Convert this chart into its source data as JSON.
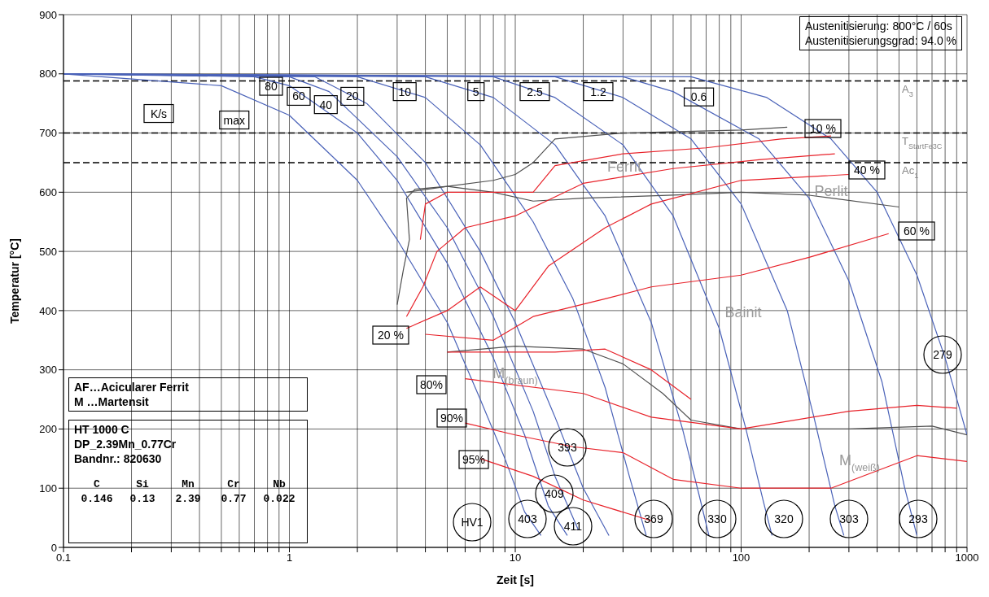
{
  "chart_data": {
    "type": "line",
    "xlabel": "Zeit [s]",
    "ylabel": "Temperatur [°C]",
    "log": "x",
    "grid": true,
    "xlim": [
      0.1,
      1000
    ],
    "ylim": [
      0,
      900
    ],
    "xticks": [
      0.1,
      {
        "value": 0.2,
        "label": null
      },
      {
        "value": 0.3,
        "label": null
      },
      {
        "value": 0.4,
        "label": null
      },
      {
        "value": 0.5,
        "label": null
      },
      {
        "value": 0.6,
        "label": null
      },
      {
        "value": 0.7,
        "label": null
      },
      {
        "value": 0.8,
        "label": null
      },
      {
        "value": 0.9,
        "label": null
      },
      1,
      {
        "value": 2,
        "label": null
      },
      {
        "value": 3,
        "label": null
      },
      {
        "value": 4,
        "label": null
      },
      {
        "value": 5,
        "label": null
      },
      {
        "value": 6,
        "label": null
      },
      {
        "value": 7,
        "label": null
      },
      {
        "value": 8,
        "label": null
      },
      {
        "value": 9,
        "label": null
      },
      10,
      {
        "value": 20,
        "label": null
      },
      {
        "value": 30,
        "label": null
      },
      {
        "value": 40,
        "label": null
      },
      {
        "value": 50,
        "label": null
      },
      {
        "value": 60,
        "label": null
      },
      {
        "value": 70,
        "label": null
      },
      {
        "value": 80,
        "label": null
      },
      {
        "value": 90,
        "label": null
      },
      100,
      {
        "value": 200,
        "label": null
      },
      {
        "value": 300,
        "label": null
      },
      {
        "value": 400,
        "label": null
      },
      {
        "value": 500,
        "label": null
      },
      {
        "value": 600,
        "label": null
      },
      {
        "value": 700,
        "label": null
      },
      {
        "value": 800,
        "label": null
      },
      {
        "value": 900,
        "label": null
      },
      1000
    ],
    "yticks": [
      0,
      100,
      200,
      300,
      400,
      500,
      600,
      700,
      800,
      900
    ],
    "series": [
      {
        "color": "#4a62b8",
        "x": [
          0.1,
          0.5,
          1,
          2,
          3,
          5,
          7,
          9,
          11,
          13
        ],
        "values": [
          800,
          780,
          730,
          620,
          520,
          380,
          250,
          150,
          60,
          20
        ]
      },
      {
        "color": "#4a62b8",
        "x": [
          0.1,
          0.7,
          1,
          2,
          3,
          5,
          8,
          11,
          14,
          17
        ],
        "values": [
          800,
          795,
          780,
          700,
          620,
          480,
          320,
          190,
          70,
          20
        ]
      },
      {
        "color": "#4a62b8",
        "x": [
          0.1,
          1,
          1.5,
          3,
          5,
          8,
          12,
          15,
          19
        ],
        "values": [
          800,
          795,
          770,
          660,
          540,
          390,
          230,
          120,
          30
        ]
      },
      {
        "color": "#4a62b8",
        "x": [
          0.1,
          1.3,
          2.2,
          4,
          7,
          10,
          15,
          20,
          26
        ],
        "values": [
          800,
          795,
          750,
          650,
          500,
          380,
          220,
          100,
          20
        ]
      },
      {
        "color": "#4a62b8",
        "x": [
          0.1,
          2,
          4,
          7,
          12,
          18,
          25,
          32,
          38
        ],
        "values": [
          800,
          795,
          760,
          680,
          550,
          420,
          270,
          120,
          20
        ]
      },
      {
        "color": "#4a62b8",
        "x": [
          0.1,
          4,
          8,
          15,
          25,
          40,
          55,
          65,
          72
        ],
        "values": [
          800,
          795,
          760,
          680,
          560,
          380,
          200,
          90,
          20
        ]
      },
      {
        "color": "#4a62b8",
        "x": [
          0.1,
          8,
          15,
          30,
          50,
          80,
          105,
          125,
          137
        ],
        "values": [
          800,
          795,
          760,
          680,
          560,
          370,
          200,
          80,
          20
        ]
      },
      {
        "color": "#4a62b8",
        "x": [
          0.1,
          15,
          30,
          60,
          100,
          160,
          210,
          260,
          285
        ],
        "values": [
          800,
          795,
          760,
          690,
          580,
          400,
          220,
          70,
          20
        ]
      },
      {
        "color": "#4a62b8",
        "x": [
          0.1,
          30,
          50,
          120,
          200,
          300,
          420,
          530,
          600
        ],
        "values": [
          800,
          795,
          770,
          690,
          590,
          450,
          280,
          100,
          20
        ]
      },
      {
        "color": "#4a62b8",
        "x": [
          0.1,
          60,
          130,
          250,
          400,
          600,
          800,
          1000
        ],
        "values": [
          800,
          795,
          760,
          690,
          600,
          460,
          320,
          190
        ]
      },
      {
        "color": "#505050",
        "x": [
          3,
          3.2,
          3.4,
          3.3,
          3.6,
          5,
          8,
          10,
          12,
          15,
          30,
          100,
          160
        ],
        "values": [
          410,
          470,
          520,
          590,
          605,
          610,
          620,
          630,
          650,
          690,
          700,
          705,
          710
        ]
      },
      {
        "color": "#505050",
        "x": [
          3.3,
          5,
          8,
          12,
          20,
          50,
          100,
          200,
          500
        ],
        "values": [
          600,
          610,
          600,
          585,
          590,
          595,
          600,
          595,
          575
        ]
      },
      {
        "color": "#505050",
        "x": [
          5,
          10,
          20,
          30,
          45,
          60,
          100,
          300,
          700,
          1000
        ],
        "values": [
          330,
          340,
          335,
          310,
          260,
          215,
          200,
          200,
          205,
          190
        ]
      },
      {
        "color": "#e8222a",
        "x": [
          3.8,
          4,
          5,
          10,
          12,
          15,
          30,
          70,
          150,
          250
        ],
        "values": [
          520,
          580,
          600,
          600,
          600,
          645,
          665,
          675,
          690,
          695
        ]
      },
      {
        "color": "#e8222a",
        "x": [
          3.3,
          3.9,
          4.5,
          6,
          10,
          20,
          50,
          120,
          260
        ],
        "values": [
          390,
          440,
          500,
          540,
          560,
          615,
          640,
          655,
          665
        ]
      },
      {
        "color": "#e8222a",
        "x": [
          3.3,
          5,
          7,
          10,
          14,
          25,
          40,
          100,
          300
        ],
        "values": [
          370,
          400,
          440,
          400,
          475,
          540,
          580,
          620,
          630
        ]
      },
      {
        "color": "#e8222a",
        "x": [
          4,
          8,
          12,
          25,
          40,
          100,
          200,
          450
        ],
        "values": [
          360,
          350,
          390,
          420,
          440,
          460,
          490,
          530
        ]
      },
      {
        "color": "#e8222a",
        "x": [
          5,
          15,
          25,
          40,
          60
        ],
        "values": [
          330,
          330,
          335,
          300,
          250
        ]
      },
      {
        "color": "#e8222a",
        "x": [
          6,
          20,
          40,
          100,
          300,
          600,
          900
        ],
        "values": [
          285,
          260,
          220,
          200,
          230,
          240,
          235
        ]
      },
      {
        "color": "#e8222a",
        "x": [
          6,
          10,
          18,
          30,
          50,
          100,
          250,
          600,
          1000
        ],
        "values": [
          210,
          190,
          170,
          160,
          115,
          100,
          100,
          155,
          145
        ]
      },
      {
        "color": "#e8222a",
        "x": [
          7,
          12,
          20,
          40
        ],
        "values": [
          150,
          120,
          80,
          45
        ]
      }
    ],
    "ref_lines": [
      {
        "axis": "y",
        "value": 788,
        "label": "A$_{3}$",
        "color": "#000000",
        "line_style": "dashed"
      },
      {
        "axis": "y",
        "value": 700,
        "label": "T$_{StartFe3C}$",
        "color": "#000000",
        "line_style": "dashed"
      },
      {
        "axis": "y",
        "value": 650,
        "label": "Ac$_{1}$",
        "color": "#000000",
        "line_style": "dashed"
      }
    ],
    "annotations": [
      "Austenitisierung: 800°C / 60s",
      "Austenitisierungsgrad: 94.0 %",
      "AF…Acicularer Ferrit",
      "M …Martensit",
      "HT 1000 C",
      "DP_2.39Mn_0.77Cr",
      "Bandnr.: 820630",
      "C Si Mn Cr Nb",
      "0.146 0.13 2.39 0.77 0.022",
      {
        "text": "K/s",
        "x": 0.264,
        "y": 733
      },
      {
        "text": "max",
        "x": 0.57,
        "y": 722
      },
      {
        "text": "80",
        "x": 0.83,
        "y": 779
      },
      {
        "text": "60",
        "x": 1.1,
        "y": 762
      },
      {
        "text": "40",
        "x": 1.45,
        "y": 748
      },
      {
        "text": "20",
        "x": 1.9,
        "y": 762
      },
      {
        "text": "10",
        "x": 3.24,
        "y": 770
      },
      {
        "text": "5",
        "x": 6.7,
        "y": 770
      },
      {
        "text": "2.5",
        "x": 12.2,
        "y": 770
      },
      {
        "text": "1.2",
        "x": 23.3,
        "y": 770
      },
      {
        "text": "0.6",
        "x": 65,
        "y": 761
      },
      "10 %",
      "40 %",
      "60 %",
      "20 %",
      "80%",
      "90%",
      "95%",
      "279",
      "393",
      "409",
      "403",
      "411",
      "369",
      "330",
      "320",
      "303",
      "293",
      "HV1",
      "Ferrit",
      "Perlit",
      "Bainit",
      "M$_{(braun)}$",
      "M$_{(weiß)}$"
    ]
  }
}
